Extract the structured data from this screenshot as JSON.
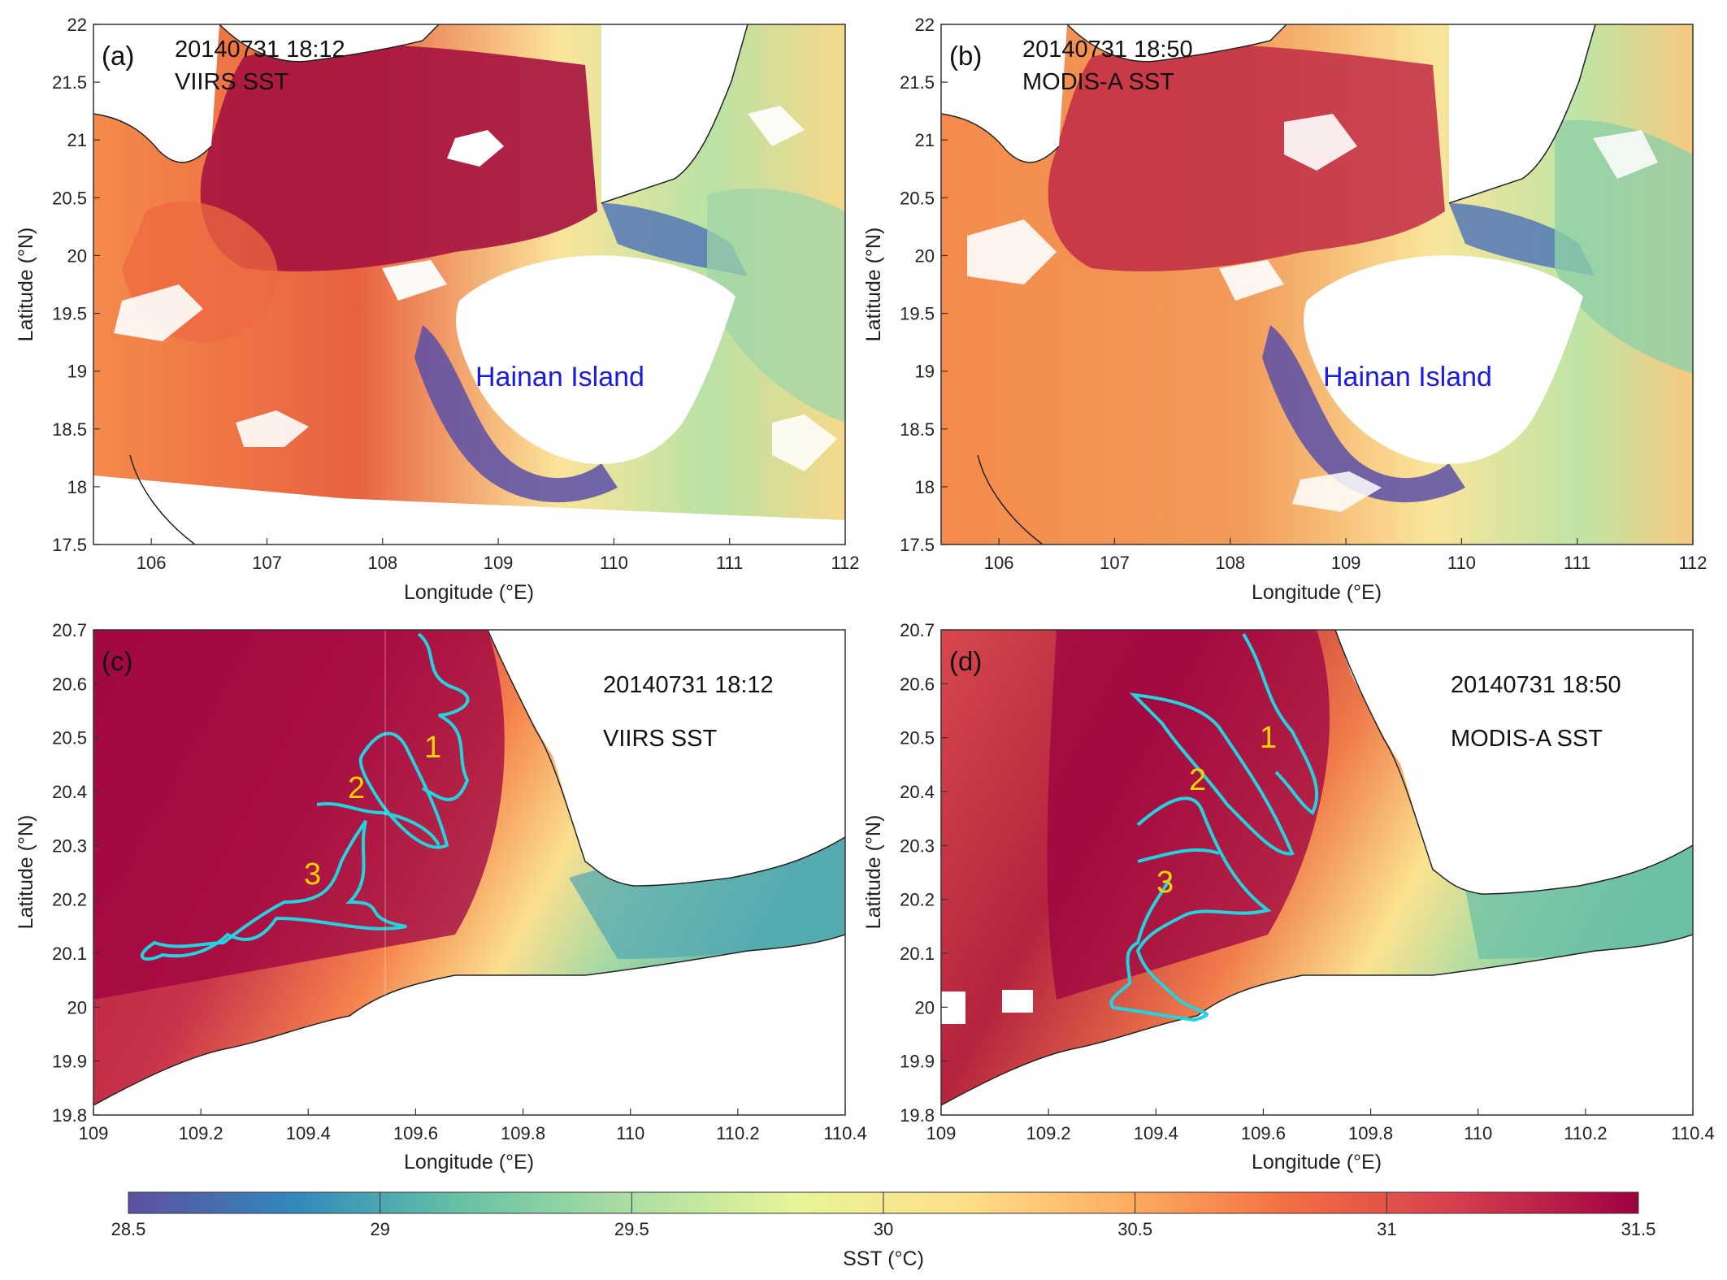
{
  "colorbar": {
    "label": "SST (°C)",
    "range": [
      28.5,
      31.5
    ],
    "ticks": [
      "28.5",
      "29",
      "29.5",
      "30",
      "30.5",
      "31",
      "31.5"
    ],
    "colors": [
      "#5e4fa2",
      "#3288bd",
      "#66c2a5",
      "#abdda4",
      "#e6f598",
      "#fee08b",
      "#fdae61",
      "#f46d43",
      "#d53e4f",
      "#9e0142"
    ]
  },
  "panels": [
    {
      "id": "a",
      "letter": "(a)",
      "timestamp": "20140731 18:12",
      "sensor": "VIIRS SST",
      "feature_label": "Hainan Island",
      "xlabel": "Longitude (°E)",
      "ylabel": "Latitude (°N)",
      "xticks": [
        "106",
        "107",
        "108",
        "109",
        "110",
        "111",
        "112"
      ],
      "yticks": [
        "17.5",
        "18",
        "18.5",
        "19",
        "19.5",
        "20",
        "20.5",
        "21",
        "21.5",
        "22"
      ]
    },
    {
      "id": "b",
      "letter": "(b)",
      "timestamp": "20140731 18:50",
      "sensor": "MODIS-A SST",
      "feature_label": "Hainan Island",
      "xlabel": "Longitude (°E)",
      "ylabel": "Latitude (°N)",
      "xticks": [
        "106",
        "107",
        "108",
        "109",
        "110",
        "111",
        "112"
      ],
      "yticks": [
        "17.5",
        "18",
        "18.5",
        "19",
        "19.5",
        "20",
        "20.5",
        "21",
        "21.5",
        "22"
      ]
    },
    {
      "id": "c",
      "letter": "(c)",
      "timestamp": "20140731 18:12",
      "sensor": "VIIRS SST",
      "front_labels": [
        "1",
        "2",
        "3"
      ],
      "xlabel": "Longitude (°E)",
      "ylabel": "Latitude (°N)",
      "xticks": [
        "109",
        "109.2",
        "109.4",
        "109.6",
        "109.8",
        "110",
        "110.2",
        "110.4"
      ],
      "yticks": [
        "19.8",
        "19.9",
        "20",
        "20.1",
        "20.2",
        "20.3",
        "20.4",
        "20.5",
        "20.6",
        "20.7"
      ]
    },
    {
      "id": "d",
      "letter": "(d)",
      "timestamp": "20140731 18:50",
      "sensor": "MODIS-A SST",
      "front_labels": [
        "1",
        "2",
        "3"
      ],
      "xlabel": "Longitude (°E)",
      "ylabel": "Latitude (°N)",
      "xticks": [
        "109",
        "109.2",
        "109.4",
        "109.6",
        "109.8",
        "110",
        "110.2",
        "110.4"
      ],
      "yticks": [
        "19.8",
        "19.9",
        "20",
        "20.1",
        "20.2",
        "20.3",
        "20.4",
        "20.5",
        "20.6",
        "20.7"
      ]
    }
  ]
}
